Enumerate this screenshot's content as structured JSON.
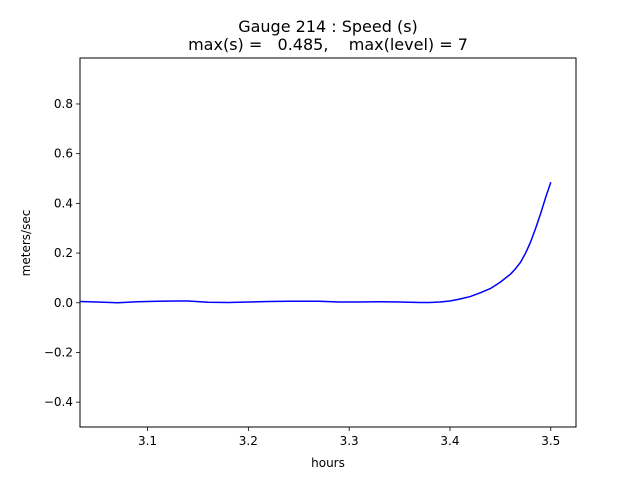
{
  "chart_data": {
    "type": "line",
    "title": "Gauge 214 : Speed (s)",
    "subtitle": "max(s) =   0.485,    max(level) = 7",
    "xlabel": "hours",
    "ylabel": "meters/sec",
    "xlim": [
      3.033,
      3.525
    ],
    "ylim": [
      -0.5,
      0.985
    ],
    "xticks": [
      3.1,
      3.2,
      3.3,
      3.4,
      3.5
    ],
    "yticks": [
      -0.4,
      -0.2,
      0.0,
      0.2,
      0.4,
      0.6,
      0.8
    ],
    "xtick_labels": [
      "3.1",
      "3.2",
      "3.3",
      "3.4",
      "3.5"
    ],
    "ytick_labels": [
      "−0.4",
      "−0.2",
      "0.0",
      "0.2",
      "0.4",
      "0.6",
      "0.8"
    ],
    "grid": false,
    "series": [
      {
        "color": "#0000ff",
        "x": [
          3.033,
          3.05,
          3.07,
          3.09,
          3.11,
          3.13,
          3.14,
          3.16,
          3.18,
          3.2,
          3.22,
          3.24,
          3.25,
          3.27,
          3.29,
          3.31,
          3.33,
          3.35,
          3.37,
          3.38,
          3.39,
          3.4,
          3.41,
          3.42,
          3.43,
          3.44,
          3.45,
          3.46,
          3.465,
          3.47,
          3.475,
          3.48,
          3.485,
          3.49,
          3.495,
          3.5
        ],
        "y": [
          0.005,
          0.003,
          0.0,
          0.004,
          0.006,
          0.007,
          0.007,
          0.002,
          0.001,
          0.003,
          0.005,
          0.006,
          0.006,
          0.006,
          0.003,
          0.003,
          0.004,
          0.003,
          0.001,
          0.001,
          0.003,
          0.007,
          0.015,
          0.025,
          0.04,
          0.057,
          0.083,
          0.115,
          0.137,
          0.163,
          0.2,
          0.245,
          0.3,
          0.36,
          0.425,
          0.485
        ]
      }
    ]
  }
}
